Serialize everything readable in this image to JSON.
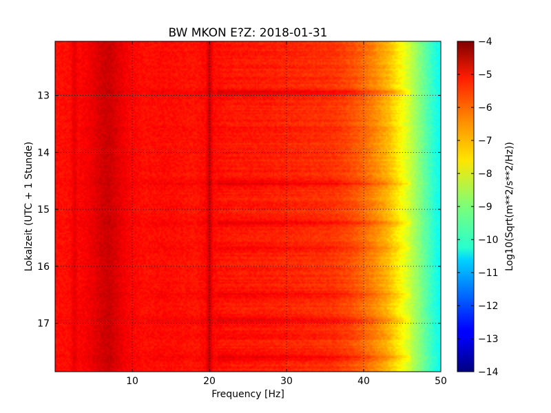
{
  "chart_data": {
    "type": "heatmap",
    "title": "BW MKON E?Z: 2018-01-31",
    "xlabel": "Frequency [Hz]",
    "ylabel": "Lokalzeit (UTC + 1 Stunde)",
    "colorbar_label": "Log10(Sqrt(m**2/s**2/Hz))",
    "colormap": "jet",
    "xlim": [
      0,
      50
    ],
    "ylim": [
      17.85,
      12.05
    ],
    "y_inverted": true,
    "clim": [
      -14,
      -4
    ],
    "grid": true,
    "x_ticks": [
      10,
      20,
      30,
      40,
      50
    ],
    "x_tick_labels": [
      "10",
      "20",
      "30",
      "40",
      "50"
    ],
    "y_ticks": [
      13,
      14,
      15,
      16,
      17
    ],
    "y_tick_labels": [
      "13",
      "14",
      "15",
      "16",
      "17"
    ],
    "colorbar_ticks": [
      -4,
      -5,
      -6,
      -7,
      -8,
      -9,
      -10,
      -11,
      -12,
      -13,
      -14
    ],
    "colorbar_tick_labels": [
      "−4",
      "−5",
      "−6",
      "−7",
      "−8",
      "−9",
      "−10",
      "−11",
      "−12",
      "−13",
      "−14"
    ],
    "frequency_profile": {
      "frequency_hz": [
        0,
        1,
        2,
        2.5,
        3,
        4,
        5,
        6,
        7,
        8,
        9,
        10,
        12,
        14,
        16,
        18,
        19.5,
        20,
        20.5,
        22,
        24,
        26,
        28,
        30,
        32,
        34,
        36,
        37,
        38,
        39,
        40,
        41,
        42,
        43,
        44,
        45,
        46,
        47,
        48,
        49,
        50
      ],
      "log10_amplitude": [
        -5.4,
        -5.4,
        -5.35,
        -5.0,
        -5.3,
        -5.2,
        -5.05,
        -4.85,
        -4.75,
        -4.95,
        -5.15,
        -5.3,
        -5.4,
        -5.35,
        -5.4,
        -5.45,
        -5.35,
        -4.7,
        -5.35,
        -5.45,
        -5.5,
        -5.5,
        -5.55,
        -5.6,
        -5.65,
        -5.7,
        -5.75,
        -5.85,
        -5.95,
        -6.1,
        -6.3,
        -6.5,
        -6.75,
        -7.0,
        -7.4,
        -7.8,
        -8.3,
        -8.8,
        -9.3,
        -9.8,
        -10.2
      ]
    },
    "time_bands": {
      "center_hours": [
        12.95,
        13.6,
        14.55,
        15.25,
        15.7,
        16.5,
        16.95,
        17.2,
        17.6
      ],
      "log10_offset": [
        0.45,
        0.2,
        0.45,
        0.35,
        0.2,
        0.3,
        0.45,
        0.25,
        0.4
      ]
    }
  }
}
